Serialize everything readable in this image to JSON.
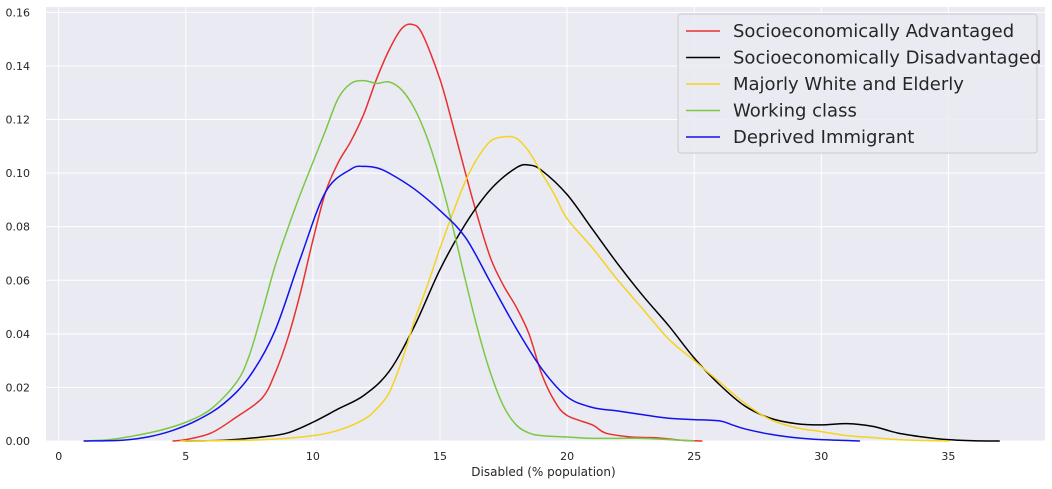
{
  "chart_data": {
    "type": "line",
    "title": "",
    "xlabel": "Disabled (% population)",
    "ylabel": "",
    "xlim": [
      -0.5,
      38.8
    ],
    "ylim": [
      0,
      0.162
    ],
    "x_ticks": [
      0,
      5,
      10,
      15,
      20,
      25,
      30,
      35
    ],
    "x_tick_labels": [
      "0",
      "5",
      "10",
      "15",
      "20",
      "25",
      "30",
      "35"
    ],
    "y_ticks": [
      0,
      0.02,
      0.04,
      0.06,
      0.08,
      0.1,
      0.12,
      0.14,
      0.16
    ],
    "y_tick_labels": [
      "0.00",
      "0.02",
      "0.04",
      "0.06",
      "0.08",
      "0.10",
      "0.12",
      "0.14",
      "0.16"
    ],
    "grid": true,
    "legend_position": "top-right",
    "background_color": "#EAEAF2",
    "grid_color": "#FFFFFF",
    "series": [
      {
        "name": "Socioeconomically  Advantaged",
        "color": "#E8312F",
        "points": [
          [
            4.5,
            0
          ],
          [
            5,
            0.0005
          ],
          [
            6,
            0.003
          ],
          [
            7,
            0.009
          ],
          [
            8,
            0.016
          ],
          [
            8.5,
            0.025
          ],
          [
            9,
            0.038
          ],
          [
            9.5,
            0.055
          ],
          [
            10,
            0.075
          ],
          [
            10.5,
            0.093
          ],
          [
            11,
            0.104
          ],
          [
            11.5,
            0.112
          ],
          [
            12,
            0.122
          ],
          [
            12.5,
            0.135
          ],
          [
            13,
            0.146
          ],
          [
            13.5,
            0.154
          ],
          [
            13.9,
            0.1555
          ],
          [
            14.3,
            0.152
          ],
          [
            15,
            0.135
          ],
          [
            15.5,
            0.118
          ],
          [
            16,
            0.1
          ],
          [
            16.5,
            0.083
          ],
          [
            17,
            0.068
          ],
          [
            17.5,
            0.058
          ],
          [
            18,
            0.05
          ],
          [
            18.5,
            0.04
          ],
          [
            19,
            0.025
          ],
          [
            19.5,
            0.015
          ],
          [
            20,
            0.0095
          ],
          [
            21,
            0.006
          ],
          [
            21.5,
            0.003
          ],
          [
            22.5,
            0.0015
          ],
          [
            23.5,
            0.0012
          ],
          [
            24.5,
            0.0003
          ],
          [
            25.3,
            0
          ]
        ]
      },
      {
        "name": "Socioeconomically Disadvantaged",
        "color": "#000000",
        "points": [
          [
            5,
            0
          ],
          [
            6.5,
            0.0003
          ],
          [
            8,
            0.0015
          ],
          [
            9,
            0.003
          ],
          [
            10,
            0.007
          ],
          [
            11,
            0.012
          ],
          [
            12,
            0.017
          ],
          [
            13,
            0.026
          ],
          [
            14,
            0.043
          ],
          [
            15,
            0.064
          ],
          [
            16,
            0.081
          ],
          [
            17,
            0.094
          ],
          [
            18,
            0.102
          ],
          [
            18.5,
            0.103
          ],
          [
            19,
            0.101
          ],
          [
            20,
            0.092
          ],
          [
            21,
            0.079
          ],
          [
            22,
            0.066
          ],
          [
            23,
            0.054
          ],
          [
            24,
            0.043
          ],
          [
            25,
            0.031
          ],
          [
            26,
            0.021
          ],
          [
            27,
            0.013
          ],
          [
            28,
            0.0085
          ],
          [
            29,
            0.0065
          ],
          [
            30,
            0.006
          ],
          [
            31,
            0.0065
          ],
          [
            32,
            0.0055
          ],
          [
            33,
            0.003
          ],
          [
            34,
            0.0015
          ],
          [
            35,
            0.0005
          ],
          [
            36,
            0.0001
          ],
          [
            37,
            0
          ]
        ]
      },
      {
        "name": "Majorly White and Elderly",
        "color": "#F5D320",
        "points": [
          [
            4.8,
            0
          ],
          [
            7,
            0.0002
          ],
          [
            8.5,
            0.0007
          ],
          [
            10,
            0.002
          ],
          [
            11,
            0.004
          ],
          [
            12,
            0.008
          ],
          [
            12.5,
            0.012
          ],
          [
            13,
            0.018
          ],
          [
            13.5,
            0.03
          ],
          [
            14,
            0.045
          ],
          [
            14.5,
            0.058
          ],
          [
            15,
            0.072
          ],
          [
            15.5,
            0.085
          ],
          [
            16,
            0.097
          ],
          [
            16.5,
            0.106
          ],
          [
            17,
            0.112
          ],
          [
            17.5,
            0.1135
          ],
          [
            18,
            0.113
          ],
          [
            18.5,
            0.108
          ],
          [
            19,
            0.1
          ],
          [
            19.5,
            0.092
          ],
          [
            20,
            0.083
          ],
          [
            21,
            0.072
          ],
          [
            22,
            0.06
          ],
          [
            23,
            0.049
          ],
          [
            24,
            0.038
          ],
          [
            25,
            0.03
          ],
          [
            26,
            0.022
          ],
          [
            27,
            0.014
          ],
          [
            28,
            0.008
          ],
          [
            29,
            0.005
          ],
          [
            30,
            0.0035
          ],
          [
            31,
            0.002
          ],
          [
            32,
            0.0013
          ],
          [
            33,
            0.0005
          ],
          [
            34,
            0.0002
          ],
          [
            35,
            0
          ]
        ]
      },
      {
        "name": "Working class",
        "color": "#7AC843",
        "points": [
          [
            1,
            0
          ],
          [
            2,
            0.0005
          ],
          [
            3,
            0.002
          ],
          [
            4,
            0.004
          ],
          [
            5,
            0.007
          ],
          [
            6,
            0.012
          ],
          [
            7,
            0.022
          ],
          [
            7.5,
            0.032
          ],
          [
            8,
            0.048
          ],
          [
            8.5,
            0.065
          ],
          [
            9,
            0.079
          ],
          [
            9.5,
            0.092
          ],
          [
            10,
            0.104
          ],
          [
            10.5,
            0.116
          ],
          [
            11,
            0.128
          ],
          [
            11.5,
            0.1335
          ],
          [
            12,
            0.1345
          ],
          [
            12.5,
            0.1335
          ],
          [
            13,
            0.134
          ],
          [
            13.5,
            0.131
          ],
          [
            14,
            0.124
          ],
          [
            14.5,
            0.113
          ],
          [
            15,
            0.098
          ],
          [
            15.5,
            0.08
          ],
          [
            16,
            0.06
          ],
          [
            16.5,
            0.041
          ],
          [
            17,
            0.025
          ],
          [
            17.5,
            0.013
          ],
          [
            18,
            0.006
          ],
          [
            18.5,
            0.003
          ],
          [
            19,
            0.002
          ],
          [
            20,
            0.0015
          ],
          [
            21,
            0.001
          ],
          [
            22,
            0.001
          ],
          [
            23,
            0.001
          ],
          [
            24,
            0.0005
          ],
          [
            25,
            0
          ]
        ]
      },
      {
        "name": "Deprived Immigrant",
        "color": "#1111EE",
        "points": [
          [
            1,
            0
          ],
          [
            2.5,
            0.0003
          ],
          [
            3.5,
            0.0015
          ],
          [
            4.5,
            0.004
          ],
          [
            5.5,
            0.008
          ],
          [
            6.5,
            0.014
          ],
          [
            7.5,
            0.024
          ],
          [
            8.5,
            0.041
          ],
          [
            9.5,
            0.068
          ],
          [
            10.5,
            0.093
          ],
          [
            11.5,
            0.1015
          ],
          [
            12,
            0.1025
          ],
          [
            12.5,
            0.102
          ],
          [
            13,
            0.1
          ],
          [
            14,
            0.094
          ],
          [
            15,
            0.086
          ],
          [
            16,
            0.076
          ],
          [
            17,
            0.059
          ],
          [
            18,
            0.042
          ],
          [
            19,
            0.027
          ],
          [
            20,
            0.0165
          ],
          [
            21,
            0.0125
          ],
          [
            22,
            0.0112
          ],
          [
            23,
            0.0098
          ],
          [
            24,
            0.0085
          ],
          [
            25,
            0.008
          ],
          [
            26,
            0.0075
          ],
          [
            26.5,
            0.006
          ],
          [
            27,
            0.0045
          ],
          [
            28,
            0.0025
          ],
          [
            29,
            0.0012
          ],
          [
            30,
            0.0005
          ],
          [
            31,
            0.0002
          ],
          [
            31.5,
            0
          ]
        ]
      }
    ]
  }
}
